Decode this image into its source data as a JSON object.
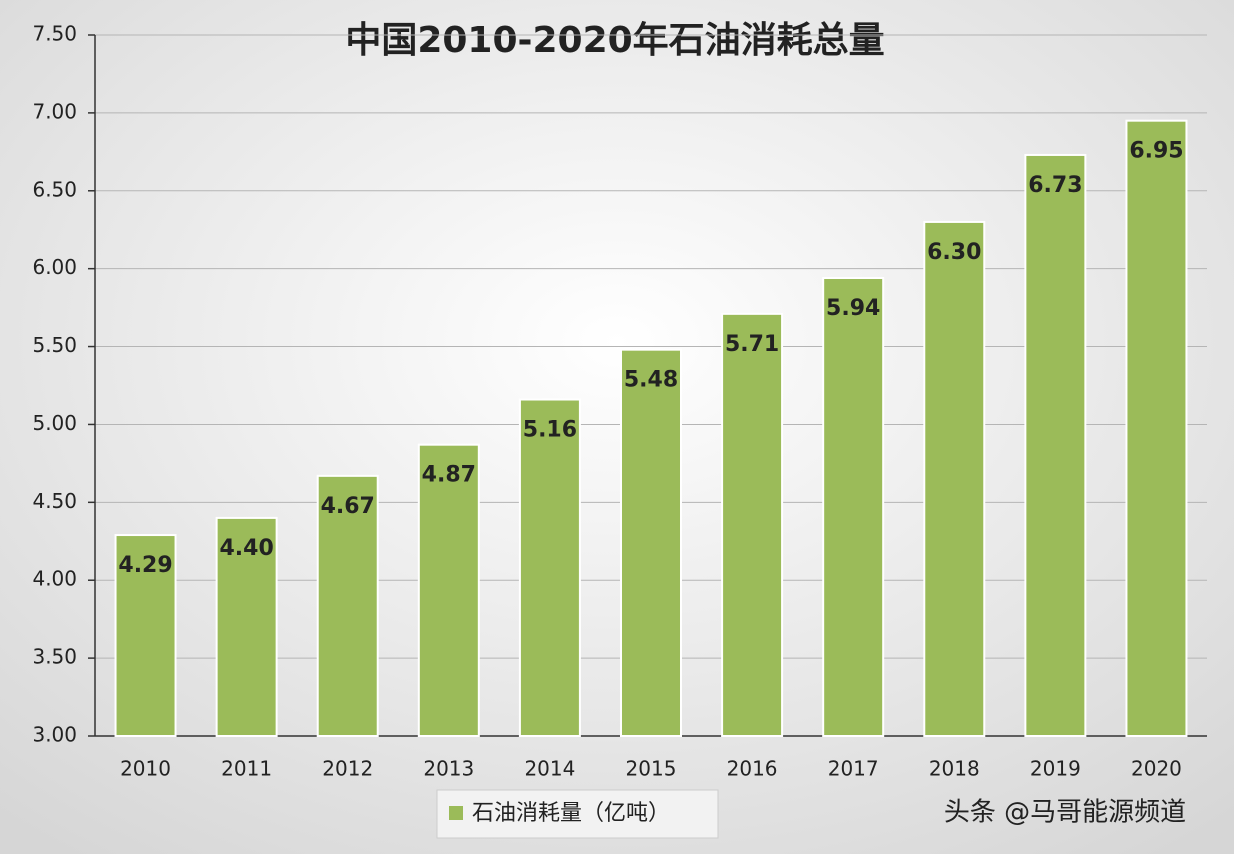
{
  "chart_data": {
    "type": "bar",
    "title": "中国2010-2020年石油消耗总量",
    "categories": [
      "2010",
      "2011",
      "2012",
      "2013",
      "2014",
      "2015",
      "2016",
      "2017",
      "2018",
      "2019",
      "2020"
    ],
    "series": [
      {
        "name": "石油消耗量（亿吨）",
        "color": "#9bbb59",
        "values": [
          4.29,
          4.4,
          4.67,
          4.87,
          5.16,
          5.48,
          5.71,
          5.94,
          6.3,
          6.73,
          6.95
        ],
        "value_labels": [
          "4.29",
          "4.40",
          "4.67",
          "4.87",
          "5.16",
          "5.48",
          "5.71",
          "5.94",
          "6.30",
          "6.73",
          "6.95"
        ]
      }
    ],
    "ylim": [
      3,
      7.5
    ],
    "yticks": [
      {
        "value": 3,
        "label": "3.00"
      },
      {
        "value": 3.5,
        "label": "3.50"
      },
      {
        "value": 4,
        "label": "4.00"
      },
      {
        "value": 4.5,
        "label": "4.50"
      },
      {
        "value": 5,
        "label": "5.00"
      },
      {
        "value": 5.5,
        "label": "5.50"
      },
      {
        "value": 6,
        "label": "6.00"
      },
      {
        "value": 6.5,
        "label": "6.50"
      },
      {
        "value": 7,
        "label": "7.00"
      },
      {
        "value": 7.5,
        "label": "7.50"
      }
    ],
    "grid": true,
    "legend": "bottom",
    "watermark": "头条 @马哥能源频道"
  }
}
